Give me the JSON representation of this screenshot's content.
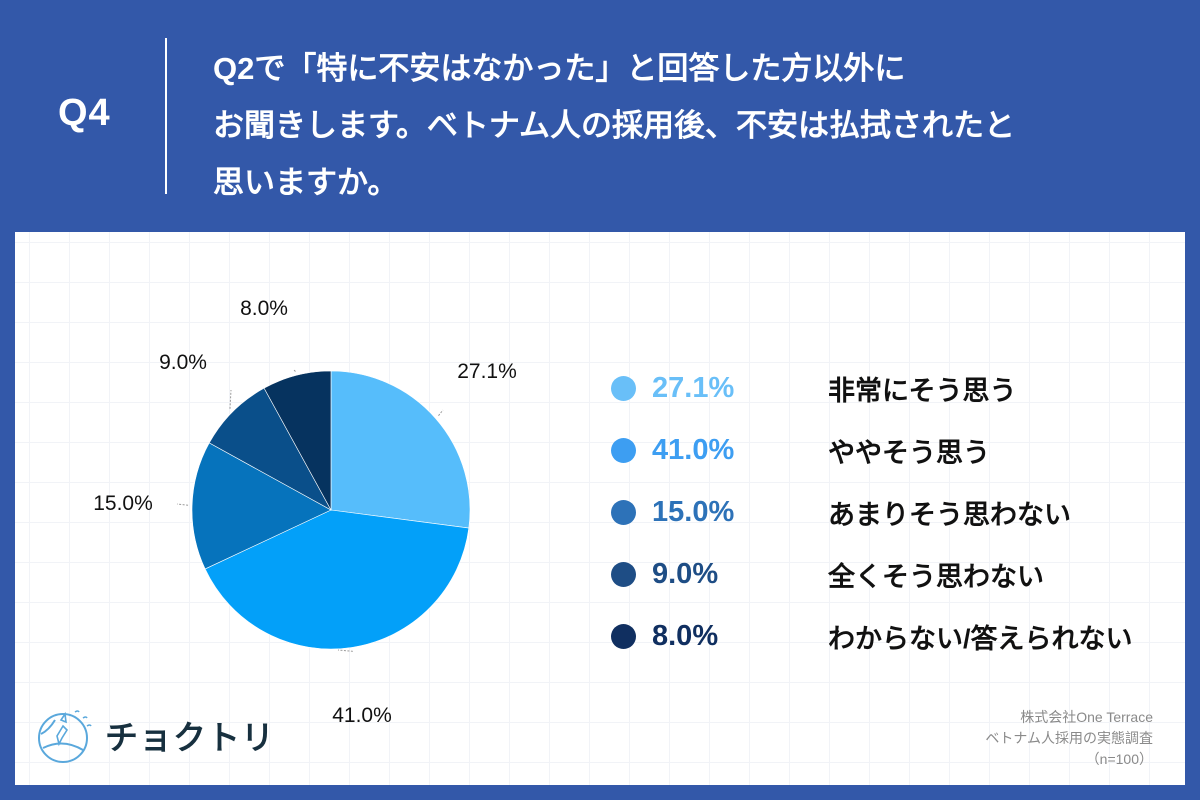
{
  "header": {
    "question_number": "Q4",
    "title_lines": [
      "Q2で「特に不安はなかった」と回答した方以外に",
      "お聞きします。ベトナム人の採用後、不安は払拭されたと",
      "思いますか。"
    ]
  },
  "colors": {
    "header_bg": "#3358a9",
    "card_bg": "#ffffff"
  },
  "chart_data": {
    "type": "pie",
    "title": "Q4 ベトナム人の採用後、不安は払拭されたと思いますか。",
    "start_angle": "12 o'clock, clockwise",
    "categories": [
      "非常にそう思う",
      "ややそう思う",
      "あまりそう思わない",
      "全くそう思わない",
      "わからない/答えられない"
    ],
    "values": [
      27.1,
      41.0,
      15.0,
      9.0,
      8.0
    ],
    "labels": [
      "27.1%",
      "41.0%",
      "15.0%",
      "9.0%",
      "8.0%"
    ],
    "slice_colors": [
      "#56bdfb",
      "#03a0f9",
      "#0673bc",
      "#0a4f8a",
      "#06335f"
    ],
    "legend_colors": [
      "#69bff8",
      "#3d9ef2",
      "#2d72b8",
      "#1e4d85",
      "#102f60"
    ],
    "legend_position": "right",
    "n": 100
  },
  "legend": {
    "items": [
      {
        "pct": "27.1%",
        "label": "非常にそう思う"
      },
      {
        "pct": "41.0%",
        "label": "ややそう思う"
      },
      {
        "pct": "15.0%",
        "label": "あまりそう思わない"
      },
      {
        "pct": "9.0%",
        "label": "全くそう思わない"
      },
      {
        "pct": "8.0%",
        "label": "わからない/答えられない"
      }
    ]
  },
  "logo": {
    "text": "チョクトリ",
    "icon": "globe-icon"
  },
  "credits": {
    "company": "株式会社One Terrace",
    "survey": "ベトナム人採用の実態調査",
    "sample": "（n=100）"
  }
}
